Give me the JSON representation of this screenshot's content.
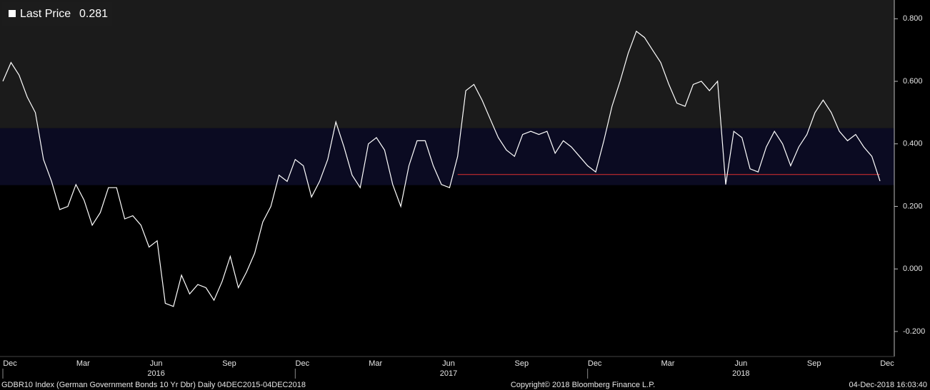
{
  "chart_data": {
    "type": "line",
    "categories": [
      "Dec",
      null,
      null,
      null,
      null,
      null,
      null,
      null,
      null,
      "Mar",
      null,
      null,
      null,
      null,
      null,
      null,
      null,
      null,
      "Jun",
      null,
      null,
      null,
      null,
      null,
      null,
      null,
      null,
      "Sep",
      null,
      null,
      null,
      null,
      null,
      null,
      null,
      null,
      "Dec",
      null,
      null,
      null,
      null,
      null,
      null,
      null,
      null,
      "Mar",
      null,
      null,
      null,
      null,
      null,
      null,
      null,
      null,
      "Jun",
      null,
      null,
      null,
      null,
      null,
      null,
      null,
      null,
      "Sep",
      null,
      null,
      null,
      null,
      null,
      null,
      null,
      null,
      "Dec",
      null,
      null,
      null,
      null,
      null,
      null,
      null,
      null,
      "Mar",
      null,
      null,
      null,
      null,
      null,
      null,
      null,
      null,
      "Jun",
      null,
      null,
      null,
      null,
      null,
      null,
      null,
      null,
      "Sep",
      null,
      null,
      null,
      null,
      null,
      null,
      null,
      null,
      "Dec"
    ],
    "years": [
      "2016",
      "2017",
      "2018"
    ],
    "series": [
      {
        "name": "Last Price",
        "color": "#ffffff",
        "values": [
          0.6,
          0.66,
          0.62,
          0.55,
          0.5,
          0.35,
          0.28,
          0.19,
          0.2,
          0.27,
          0.22,
          0.14,
          0.18,
          0.26,
          0.26,
          0.16,
          0.17,
          0.14,
          0.07,
          0.09,
          -0.11,
          -0.12,
          -0.02,
          -0.08,
          -0.05,
          -0.06,
          -0.1,
          -0.04,
          0.04,
          -0.06,
          -0.01,
          0.05,
          0.15,
          0.2,
          0.3,
          0.28,
          0.35,
          0.33,
          0.23,
          0.28,
          0.35,
          0.47,
          0.39,
          0.3,
          0.26,
          0.4,
          0.42,
          0.38,
          0.27,
          0.2,
          0.33,
          0.41,
          0.41,
          0.33,
          0.27,
          0.26,
          0.36,
          0.57,
          0.59,
          0.54,
          0.48,
          0.42,
          0.38,
          0.36,
          0.43,
          0.44,
          0.43,
          0.44,
          0.37,
          0.41,
          0.39,
          0.36,
          0.33,
          0.31,
          0.41,
          0.52,
          0.6,
          0.69,
          0.76,
          0.74,
          0.7,
          0.66,
          0.59,
          0.53,
          0.52,
          0.59,
          0.6,
          0.57,
          0.6,
          0.27,
          0.44,
          0.42,
          0.32,
          0.31,
          0.39,
          0.44,
          0.4,
          0.33,
          0.39,
          0.43,
          0.5,
          0.54,
          0.5,
          0.44,
          0.41,
          0.43,
          0.39,
          0.36,
          0.281
        ]
      }
    ],
    "reference_line": {
      "value": 0.302,
      "start": 56,
      "color": "#e0302f"
    },
    "bands": [
      {
        "from": 0.45,
        "to": 0.86,
        "color": "#1b1b1b"
      },
      {
        "from": 0.268,
        "to": 0.45,
        "color": "#0b0b22"
      }
    ],
    "ylim": [
      -0.28,
      0.86
    ],
    "yticks": [
      {
        "value": -0.2,
        "label": "-0.200"
      },
      {
        "value": 0,
        "label": "0.000"
      },
      {
        "value": 0.2,
        "label": "0.200"
      },
      {
        "value": 0.4,
        "label": "0.400"
      },
      {
        "value": 0.6,
        "label": "0.600"
      },
      {
        "value": 0.8,
        "label": "0.800"
      }
    ],
    "footer": {
      "security": "GDBR10 Index (German Government Bonds 10 Yr Dbr)  Daily 04DEC2015-04DEC2018",
      "copyright": "Copyright© 2018 Bloomberg Finance L.P.",
      "timestamp": "04-Dec-2018 16:03:40"
    }
  }
}
